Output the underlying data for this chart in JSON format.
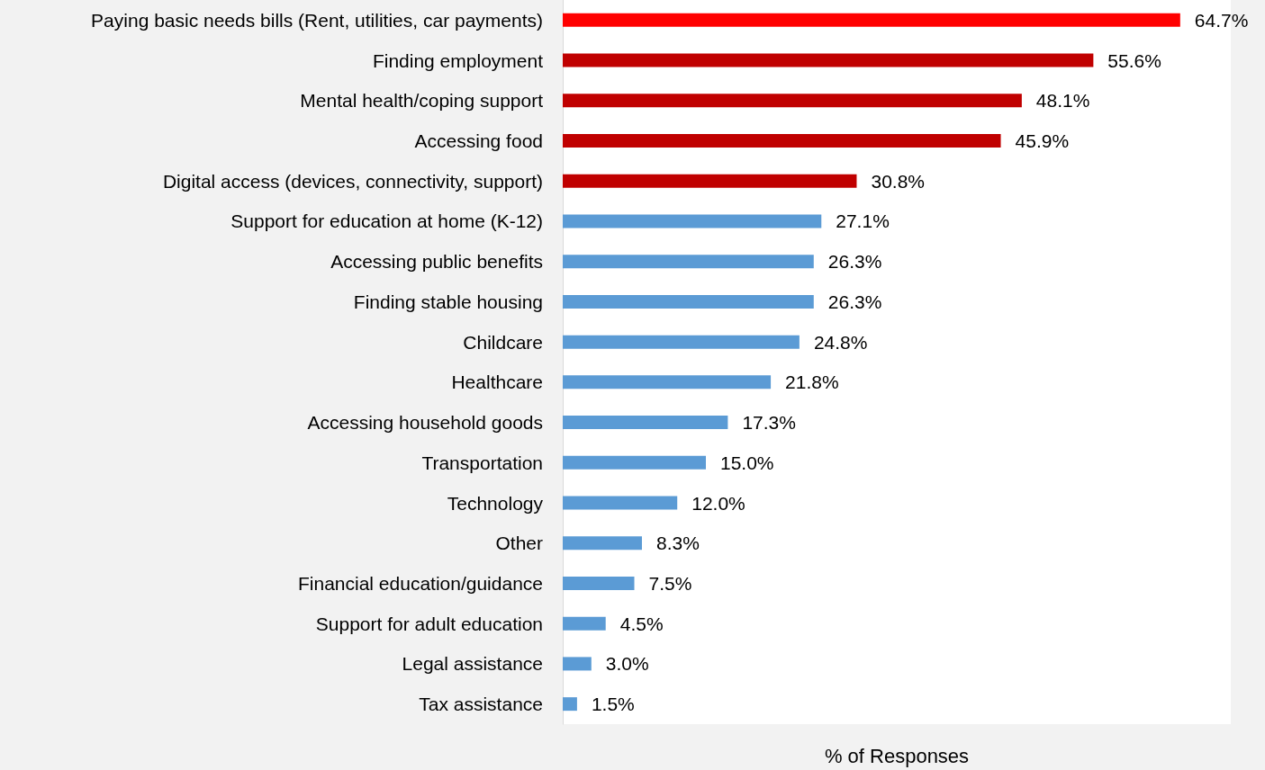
{
  "chart_data": {
    "type": "bar",
    "orientation": "horizontal",
    "xlabel": "% of Responses",
    "categories": [
      "Paying basic needs bills (Rent, utilities, car payments)",
      "Finding employment",
      "Mental health/coping support",
      "Accessing food",
      "Digital access (devices, connectivity, support)",
      "Support for education at home (K-12)",
      "Accessing public benefits",
      "Finding stable housing",
      "Childcare",
      "Healthcare",
      "Accessing household goods",
      "Transportation",
      "Technology",
      "Other",
      "Financial education/guidance",
      "Support for adult education",
      "Legal assistance",
      "Tax assistance"
    ],
    "values": [
      64.7,
      55.6,
      48.1,
      45.9,
      30.8,
      27.1,
      26.3,
      26.3,
      24.8,
      21.8,
      17.3,
      15.0,
      12.0,
      8.3,
      7.5,
      4.5,
      3.0,
      1.5
    ],
    "value_labels": [
      "64.7%",
      "55.6%",
      "48.1%",
      "45.9%",
      "30.8%",
      "27.1%",
      "26.3%",
      "26.3%",
      "24.8%",
      "21.8%",
      "17.3%",
      "15.0%",
      "12.0%",
      "8.3%",
      "7.5%",
      "4.5%",
      "3.0%",
      "1.5%"
    ],
    "colors": [
      "#ff0000",
      "#c00000",
      "#c00000",
      "#c00000",
      "#c00000",
      "#5b9bd5",
      "#5b9bd5",
      "#5b9bd5",
      "#5b9bd5",
      "#5b9bd5",
      "#5b9bd5",
      "#5b9bd5",
      "#5b9bd5",
      "#5b9bd5",
      "#5b9bd5",
      "#5b9bd5",
      "#5b9bd5",
      "#5b9bd5"
    ],
    "xlim": [
      0,
      70
    ]
  }
}
